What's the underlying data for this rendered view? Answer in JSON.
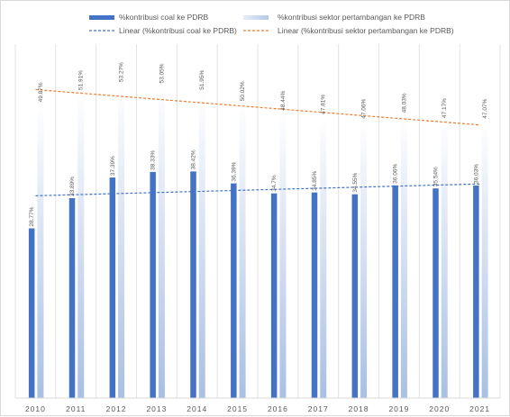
{
  "chart_data": {
    "type": "bar",
    "title": "",
    "xlabel": "",
    "ylabel": "",
    "ylim": [
      0,
      60
    ],
    "grid": "vertical",
    "legend_position": "top",
    "categories": [
      "2010",
      "2011",
      "2012",
      "2013",
      "2014",
      "2015",
      "2016",
      "2017",
      "2018",
      "2019",
      "2020",
      "2021"
    ],
    "series": [
      {
        "name": "%kontribusi coal ke PDRB",
        "color": "#4472c4",
        "values": [
          28.77,
          33.89,
          37.39,
          38.33,
          38.42,
          36.39,
          34.7,
          34.85,
          34.55,
          36.06,
          35.54,
          36.03
        ],
        "labels": [
          "28.77%",
          "33.89%",
          "37.39%",
          "38.33%",
          "38.42%",
          "36.39%",
          "34.7%",
          "34.85%",
          "34.55%",
          "36.06%",
          "35.54%",
          "36.03%"
        ]
      },
      {
        "name": "%kontribusi sektor pertambangan ke PDRB",
        "color": "#b4c7e7",
        "values": [
          49.87,
          51.91,
          53.27,
          53.05,
          51.95,
          50.02,
          48.44,
          47.81,
          47.06,
          48.03,
          47.17,
          47.07
        ],
        "labels": [
          "49.87%",
          "51.91%",
          "53.27%",
          "53.05%",
          "51.95%",
          "50.02%",
          "48.44%",
          "47.81%",
          "47.06%",
          "48.03%",
          "47.17%",
          "47.07%"
        ]
      }
    ],
    "trendlines": [
      {
        "name": "Linear (%kontribusi coal ke PDRB)",
        "color": "#4472c4",
        "start": 34.3,
        "end": 36.3
      },
      {
        "name": "Linear (%kontribusi sektor pertambangan ke PDRB)",
        "color": "#ed7d31",
        "start": 52.3,
        "end": 46.3
      }
    ]
  }
}
